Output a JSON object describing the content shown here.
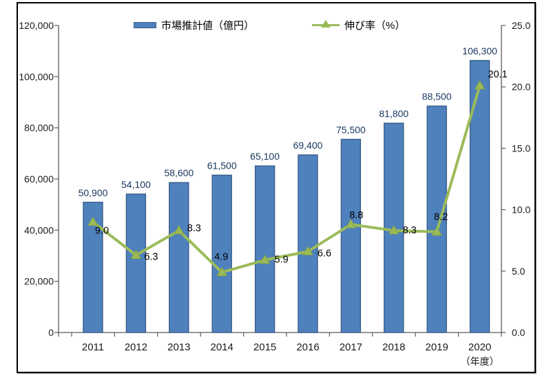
{
  "chart_data": {
    "type": "bar",
    "subtype": "combo-bar-line-dual-axis",
    "title": "",
    "categories": [
      "2011",
      "2012",
      "2013",
      "2014",
      "2015",
      "2016",
      "2017",
      "2018",
      "2019",
      "2020"
    ],
    "x_axis_unit_label": "（年度）",
    "series": [
      {
        "name": "市場推計値（億円）",
        "type": "bar",
        "axis": "left",
        "values": [
          50900,
          54100,
          58600,
          61500,
          65100,
          69400,
          75500,
          81800,
          88500,
          106300
        ],
        "data_labels": [
          "50,900",
          "54,100",
          "58,600",
          "61,500",
          "65,100",
          "69,400",
          "75,500",
          "81,800",
          "88,500",
          "106,300"
        ]
      },
      {
        "name": "伸び率（%）",
        "type": "line",
        "axis": "right",
        "values": [
          9.0,
          6.3,
          8.3,
          4.9,
          5.9,
          6.6,
          8.8,
          8.3,
          8.2,
          20.1
        ],
        "data_labels": [
          "9.0",
          "6.3",
          "8.3",
          "4.9",
          "5.9",
          "6.6",
          "8.8",
          "8.3",
          "8.2",
          "20.1"
        ]
      }
    ],
    "left_axis": {
      "min": 0,
      "max": 120000,
      "step": 20000,
      "tick_labels": [
        "0",
        "20,000",
        "40,000",
        "60,000",
        "80,000",
        "100,000",
        "120,000"
      ]
    },
    "right_axis": {
      "min": 0,
      "max": 25,
      "step": 5,
      "tick_labels": [
        "0.0",
        "5.0",
        "10.0",
        "15.0",
        "20.0",
        "25.0"
      ]
    },
    "legend_position": "top",
    "gridlines": false,
    "colors": {
      "bar_fill": "#4F81BD",
      "bar_border": "#385D8A",
      "line": "#9BBB59",
      "marker_fill": "#9BBB59",
      "marker_edge": "#86A343",
      "bar_label_text": "#17375E",
      "line_label_text": "#000000",
      "axis_line": "#595959",
      "axis_text": "#1a1a1a"
    }
  }
}
